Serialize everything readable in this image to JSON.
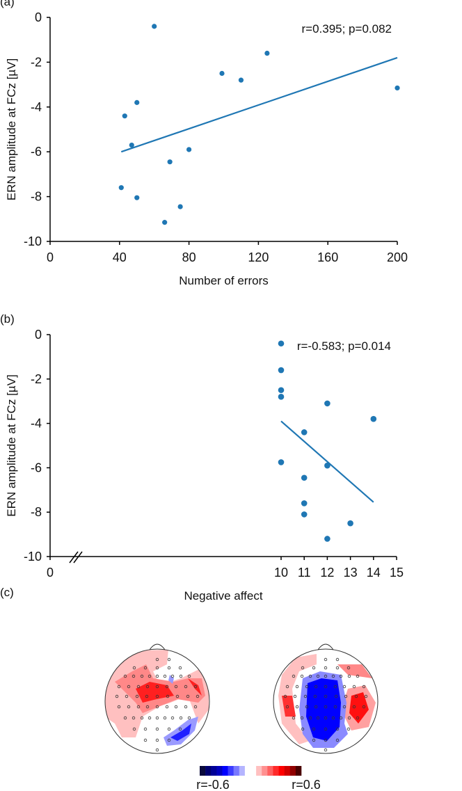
{
  "colors": {
    "marker": "#1f77b4",
    "line": "#1f77b4",
    "axis": "#000000"
  },
  "chart_data": [
    {
      "panel": "(a)",
      "type": "scatter",
      "xlabel": "Number of errors",
      "ylabel": "ERN amplitude at FCz [µV]",
      "xlim": [
        0,
        200
      ],
      "ylim": [
        -10,
        0
      ],
      "xticks": [
        0,
        40,
        80,
        120,
        160,
        200
      ],
      "yticks": [
        0,
        -2,
        -4,
        -6,
        -8,
        -10
      ],
      "annotation": "r=0.395; p=0.082",
      "grid": false,
      "points": [
        [
          60,
          -0.4
        ],
        [
          125,
          -1.6
        ],
        [
          99,
          -2.5
        ],
        [
          110,
          -2.8
        ],
        [
          200,
          -3.15
        ],
        [
          50,
          -3.8
        ],
        [
          43,
          -4.4
        ],
        [
          47,
          -5.7
        ],
        [
          80,
          -5.9
        ],
        [
          69,
          -6.45
        ],
        [
          41,
          -7.6
        ],
        [
          50,
          -8.05
        ],
        [
          75,
          -8.45
        ],
        [
          66,
          -9.15
        ]
      ],
      "fit_line": [
        [
          41,
          -6.0
        ],
        [
          200,
          -1.8
        ]
      ],
      "axis_break": false
    },
    {
      "panel": "(b)",
      "type": "scatter",
      "xlabel": "Negative affect",
      "ylabel": "ERN amplitude at FCz [µV]",
      "xlim": [
        0,
        15
      ],
      "ylim": [
        -10,
        0
      ],
      "xticks": [
        0,
        10,
        11,
        12,
        13,
        14,
        15
      ],
      "yticks": [
        0,
        -2,
        -4,
        -6,
        -8,
        -10
      ],
      "annotation": "r=-0.583; p=0.014",
      "grid": false,
      "points": [
        [
          10,
          -0.4
        ],
        [
          10,
          -1.6
        ],
        [
          10,
          -2.5
        ],
        [
          10,
          -2.8
        ],
        [
          10,
          -5.75
        ],
        [
          11,
          -4.4
        ],
        [
          11,
          -6.45
        ],
        [
          11,
          -7.6
        ],
        [
          11,
          -8.1
        ],
        [
          12,
          -3.1
        ],
        [
          12,
          -5.9
        ],
        [
          12,
          -9.2
        ],
        [
          13,
          -8.5
        ],
        [
          14,
          -3.8
        ]
      ],
      "fit_line": [
        [
          10,
          -3.9
        ],
        [
          14,
          -7.55
        ]
      ],
      "axis_break": true
    }
  ],
  "topomaps": {
    "panel": "(c)",
    "colorbar": {
      "min_label": "r=-0.6",
      "max_label": "r=0.6",
      "colors": [
        "#0a0a3c",
        "#00006e",
        "#000096",
        "#0000be",
        "#0000ff",
        "#3c3cff",
        "#7878ff",
        "#b4b4ff",
        "#ffffff",
        "#ffffff",
        "#ffc0c0",
        "#ff9090",
        "#ff6060",
        "#ff2a2a",
        "#ff0000",
        "#d00000",
        "#900000",
        "#4a0000"
      ]
    }
  }
}
